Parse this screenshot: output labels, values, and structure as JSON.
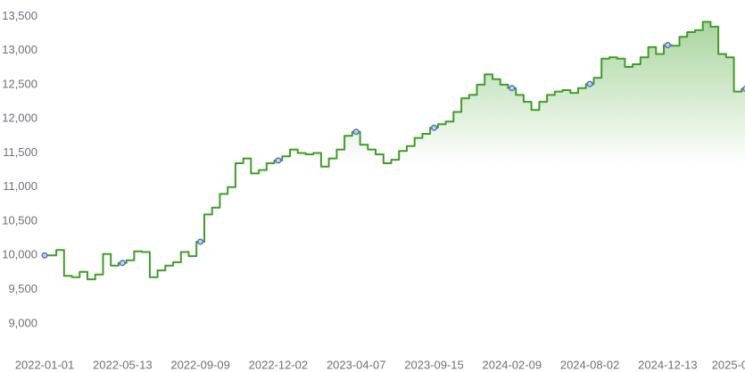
{
  "chart_data": {
    "type": "line",
    "categories": [
      "2022-01-01",
      null,
      null,
      null,
      null,
      null,
      null,
      null,
      null,
      null,
      "2022-05-13",
      null,
      null,
      null,
      null,
      null,
      null,
      null,
      null,
      null,
      "2022-09-09",
      null,
      null,
      null,
      null,
      null,
      null,
      null,
      null,
      null,
      "2022-12-02",
      null,
      null,
      null,
      null,
      null,
      null,
      null,
      null,
      null,
      "2023-04-07",
      null,
      null,
      null,
      null,
      null,
      null,
      null,
      null,
      null,
      "2023-09-15",
      null,
      null,
      null,
      null,
      null,
      null,
      null,
      null,
      null,
      "2024-02-09",
      null,
      null,
      null,
      null,
      null,
      null,
      null,
      null,
      null,
      "2024-08-02",
      null,
      null,
      null,
      null,
      null,
      null,
      null,
      null,
      null,
      "2024-12-13",
      null,
      null,
      null,
      null,
      null,
      null,
      null,
      null,
      null,
      "2025-0"
    ],
    "values": [
      10000,
      10000,
      10080,
      9700,
      9680,
      9760,
      9650,
      9720,
      10020,
      9850,
      9890,
      9930,
      10060,
      10050,
      9680,
      9780,
      9850,
      9900,
      10050,
      9990,
      10200,
      10600,
      10700,
      10900,
      11000,
      11350,
      11420,
      11200,
      11250,
      11350,
      11390,
      11450,
      11550,
      11500,
      11480,
      11500,
      11300,
      11420,
      11550,
      11750,
      11810,
      11620,
      11550,
      11480,
      11350,
      11400,
      11530,
      11600,
      11720,
      11780,
      11870,
      11920,
      11960,
      12100,
      12300,
      12350,
      12500,
      12650,
      12580,
      12500,
      12450,
      12350,
      12250,
      12130,
      12250,
      12350,
      12400,
      12420,
      12380,
      12450,
      12510,
      12600,
      12880,
      12900,
      12880,
      12760,
      12800,
      12900,
      13050,
      12950,
      13080,
      13070,
      13200,
      13270,
      13300,
      13420,
      13350,
      12950,
      12900,
      12400,
      12440
    ],
    "color": "#3d9e24",
    "marker_color": "#5470c6",
    "area": true,
    "step": true,
    "ylim": [
      8580,
      13740
    ],
    "yticks": [
      {
        "value": 9000,
        "label": "9,000"
      },
      {
        "value": 9500,
        "label": "9,500"
      },
      {
        "value": 10000,
        "label": "10,000"
      },
      {
        "value": 10500,
        "label": "10,500"
      },
      {
        "value": 11000,
        "label": "11,000"
      },
      {
        "value": 11500,
        "label": "11,500"
      },
      {
        "value": 12000,
        "label": "12,000"
      },
      {
        "value": 12500,
        "label": "12,500"
      },
      {
        "value": 13000,
        "label": "13,000"
      },
      {
        "value": 13500,
        "label": "13,500"
      }
    ]
  }
}
